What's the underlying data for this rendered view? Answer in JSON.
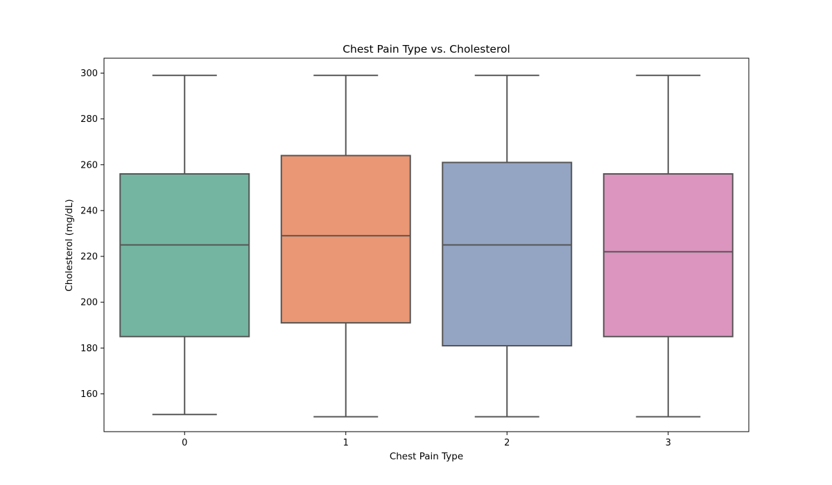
{
  "chart_data": {
    "type": "box",
    "title": "Chest Pain Type vs. Cholesterol",
    "xlabel": "Chest Pain Type",
    "ylabel": "Cholesterol (mg/dL)",
    "categories": [
      "0",
      "1",
      "2",
      "3"
    ],
    "yticks": [
      160,
      180,
      200,
      220,
      240,
      260,
      280,
      300
    ],
    "ylim": [
      143.5,
      306.5
    ],
    "grid": false,
    "boxes": [
      {
        "category": "0",
        "whisker_low": 151,
        "q1": 185,
        "median": 225,
        "q3": 256,
        "whisker_high": 299,
        "color": "#73B5A1"
      },
      {
        "category": "1",
        "whisker_low": 150,
        "q1": 191,
        "median": 229,
        "q3": 264,
        "whisker_high": 299,
        "color": "#E99774"
      },
      {
        "category": "2",
        "whisker_low": 150,
        "q1": 181,
        "median": 225,
        "q3": 261,
        "whisker_high": 299,
        "color": "#94A4C3"
      },
      {
        "category": "3",
        "whisker_low": 150,
        "q1": 185,
        "median": 222,
        "q3": 256,
        "whisker_high": 299,
        "color": "#DB95BF"
      }
    ],
    "line_color": "#555555"
  }
}
